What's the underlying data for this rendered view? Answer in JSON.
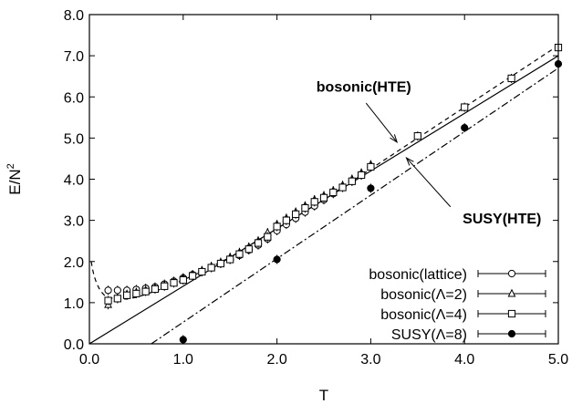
{
  "chart_data": {
    "type": "scatter",
    "title": "",
    "xlabel": "T",
    "ylabel": "E/N",
    "ylabel_sup": "2",
    "xlim": [
      0.0,
      5.0
    ],
    "ylim": [
      0.0,
      8.0
    ],
    "x_ticks": [
      0.0,
      1.0,
      2.0,
      3.0,
      4.0,
      5.0
    ],
    "x_tick_labels": [
      "0.0",
      "1.0",
      "2.0",
      "3.0",
      "4.0",
      "5.0"
    ],
    "y_ticks": [
      0.0,
      1.0,
      2.0,
      3.0,
      4.0,
      5.0,
      6.0,
      7.0,
      8.0
    ],
    "y_tick_labels": [
      "0.0",
      "1.0",
      "2.0",
      "3.0",
      "4.0",
      "5.0",
      "6.0",
      "7.0",
      "8.0"
    ],
    "grid": false,
    "legend_position": "bottom-right",
    "series": [
      {
        "name": "bosonic(lattice)",
        "marker": "circle-open",
        "x": [
          0.2,
          0.3,
          0.4,
          0.5,
          0.6,
          0.7,
          0.8,
          0.9,
          1.0,
          1.1,
          1.2,
          1.3,
          1.4,
          1.5,
          1.6,
          1.7,
          1.8,
          1.9,
          2.0,
          2.1,
          2.2,
          2.3,
          2.4,
          2.5,
          2.6,
          2.7,
          2.8,
          2.9,
          3.0
        ],
        "y": [
          1.3,
          1.3,
          1.3,
          1.32,
          1.35,
          1.38,
          1.45,
          1.52,
          1.6,
          1.68,
          1.75,
          1.85,
          1.95,
          2.05,
          2.15,
          2.28,
          2.4,
          2.55,
          2.75,
          2.9,
          3.05,
          3.2,
          3.35,
          3.5,
          3.65,
          3.8,
          3.95,
          4.1,
          4.3
        ]
      },
      {
        "name": "bosonic(Λ=2)",
        "marker": "triangle-open",
        "x": [
          0.2,
          0.3,
          0.4,
          0.5,
          0.6,
          0.7,
          0.8,
          0.9,
          1.0,
          1.1,
          1.2,
          1.3,
          1.4,
          1.5,
          1.6,
          1.7,
          1.8,
          1.9,
          2.0,
          2.1,
          2.2,
          2.3,
          2.4,
          2.5,
          2.6,
          2.7,
          2.8,
          2.9,
          3.0
        ],
        "y": [
          0.95,
          1.1,
          1.2,
          1.25,
          1.3,
          1.35,
          1.42,
          1.5,
          1.6,
          1.68,
          1.78,
          1.88,
          1.98,
          2.1,
          2.22,
          2.35,
          2.5,
          2.7,
          2.9,
          3.05,
          3.2,
          3.35,
          3.5,
          3.6,
          3.72,
          3.85,
          4.0,
          4.15,
          4.35
        ]
      },
      {
        "name": "bosonic(Λ=4)",
        "marker": "square-open",
        "x": [
          0.2,
          0.3,
          0.4,
          0.5,
          0.6,
          0.7,
          0.8,
          0.9,
          1.0,
          1.1,
          1.2,
          1.3,
          1.4,
          1.5,
          1.6,
          1.7,
          1.8,
          1.9,
          2.0,
          2.1,
          2.2,
          2.3,
          2.4,
          2.5,
          2.6,
          2.7,
          2.8,
          2.9,
          3.0,
          3.5,
          4.0,
          4.5,
          5.0
        ],
        "y": [
          1.05,
          1.1,
          1.18,
          1.22,
          1.27,
          1.33,
          1.4,
          1.48,
          1.55,
          1.65,
          1.75,
          1.85,
          1.95,
          2.05,
          2.18,
          2.3,
          2.45,
          2.6,
          2.85,
          3.0,
          3.15,
          3.3,
          3.45,
          3.55,
          3.68,
          3.8,
          3.95,
          4.1,
          4.3,
          5.05,
          5.75,
          6.45,
          7.2
        ]
      },
      {
        "name": "SUSY(Λ=8)",
        "marker": "circle-filled",
        "x": [
          1.0,
          2.0,
          3.0,
          4.0,
          5.0
        ],
        "y": [
          0.1,
          2.05,
          3.78,
          5.25,
          6.8
        ]
      }
    ],
    "curves": [
      {
        "name": "bosonic(HTE)",
        "style": "dashed",
        "x": [
          0.02,
          0.03,
          0.05,
          0.08,
          0.12,
          0.16,
          0.2,
          0.3,
          0.4,
          0.5,
          0.6,
          0.7,
          0.8,
          1.0,
          1.2,
          1.5,
          2.0,
          2.5,
          3.0,
          3.5,
          4.0,
          4.5,
          5.0
        ],
        "y": [
          2.0,
          1.85,
          1.65,
          1.45,
          1.28,
          1.18,
          1.13,
          1.08,
          1.09,
          1.13,
          1.2,
          1.28,
          1.36,
          1.55,
          1.76,
          2.1,
          2.8,
          3.5,
          4.25,
          5.0,
          5.75,
          6.5,
          7.25
        ]
      },
      {
        "name": "",
        "style": "solid",
        "x": [
          0.0,
          5.0
        ],
        "y": [
          0.0,
          7.0
        ]
      },
      {
        "name": "SUSY(HTE)",
        "style": "dash-dot",
        "x": [
          0.66,
          5.0
        ],
        "y": [
          0.0,
          6.7
        ]
      }
    ],
    "annotations": [
      {
        "text": "bosonic(HTE)",
        "label_x": 2.42,
        "label_y": 6.13,
        "arrow_from_x": 2.95,
        "arrow_from_y": 5.85,
        "arrow_to_x": 3.28,
        "arrow_to_y": 4.9
      },
      {
        "text": "SUSY(HTE)",
        "label_x": 3.98,
        "label_y": 2.93,
        "arrow_from_x": 3.85,
        "arrow_from_y": 3.33,
        "arrow_to_x": 3.38,
        "arrow_to_y": 4.52
      }
    ]
  }
}
